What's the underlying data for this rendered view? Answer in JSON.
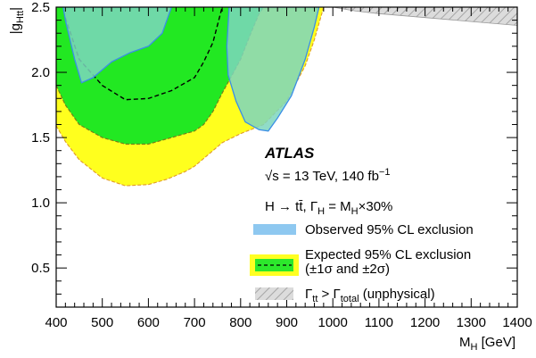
{
  "chart_data": {
    "type": "area",
    "xlabel": "M_H [GeV]",
    "ylabel": "|g_Htt|",
    "xlim": [
      400,
      1400
    ],
    "ylim": [
      0.2,
      2.5
    ],
    "x_ticks": [
      400,
      500,
      600,
      700,
      800,
      900,
      1000,
      1100,
      1200,
      1300,
      1400
    ],
    "y_ticks": [
      0.5,
      1.0,
      1.5,
      2.0,
      2.5
    ],
    "x_tick_labels": [
      "400",
      "500",
      "600",
      "700",
      "800",
      "900",
      "1000",
      "1100",
      "1200",
      "1300",
      "1400"
    ],
    "y_tick_labels": [
      "0.5",
      "1.0",
      "1.5",
      "2.0",
      "2.5"
    ],
    "annotations": {
      "experiment": "ATLAS",
      "energy_lumi": "√s = 13 TeV, 140 fb⁻¹",
      "process": "H → tt̄, Γ_H = M_H×30%"
    },
    "legend": {
      "placement": "bottom-right",
      "entries": [
        {
          "label": "Observed 95% CL exclusion",
          "color": "#8ec8f0"
        },
        {
          "label": "Expected 95% CL exclusion",
          "label2": "(±1σ and ±2σ)",
          "color": "#2ce82c",
          "band_color": "#ffff22"
        },
        {
          "label": "Γtt > Γtotal (unphysical)",
          "color": "#d6d6d6"
        }
      ]
    },
    "colors": {
      "yellow": "#ffff1e",
      "green": "#22e822",
      "observed_fill": "#7cd6be",
      "observed_edge": "#3a8ee6",
      "unphysical": "#d9d9d9"
    },
    "series": [
      {
        "name": "Expected ±2σ",
        "kind": "band",
        "points": [
          [
            400,
            1.59
          ],
          [
            420,
            1.47
          ],
          [
            450,
            1.33
          ],
          [
            500,
            1.19
          ],
          [
            550,
            1.13
          ],
          [
            600,
            1.14
          ],
          [
            640,
            1.18
          ],
          [
            680,
            1.24
          ],
          [
            700,
            1.28
          ],
          [
            720,
            1.34
          ],
          [
            740,
            1.4
          ],
          [
            760,
            1.46
          ],
          [
            800,
            1.53
          ],
          [
            850,
            1.6
          ],
          [
            900,
            1.78
          ],
          [
            940,
            2.05
          ],
          [
            960,
            2.25
          ],
          [
            980,
            2.5
          ],
          [
            400,
            2.5
          ]
        ]
      },
      {
        "name": "Expected ±1σ",
        "kind": "band",
        "points": [
          [
            400,
            1.9
          ],
          [
            420,
            1.75
          ],
          [
            450,
            1.6
          ],
          [
            500,
            1.5
          ],
          [
            550,
            1.45
          ],
          [
            600,
            1.45
          ],
          [
            650,
            1.5
          ],
          [
            700,
            1.55
          ],
          [
            720,
            1.6
          ],
          [
            740,
            1.7
          ],
          [
            760,
            1.84
          ],
          [
            780,
            1.97
          ],
          [
            800,
            2.1
          ],
          [
            820,
            2.28
          ],
          [
            840,
            2.45
          ],
          [
            850,
            2.5
          ],
          [
            400,
            2.5
          ]
        ]
      },
      {
        "name": "Expected",
        "kind": "line",
        "points": [
          [
            420,
            2.42
          ],
          [
            450,
            2.1
          ],
          [
            500,
            1.9
          ],
          [
            550,
            1.79
          ],
          [
            600,
            1.8
          ],
          [
            650,
            1.86
          ],
          [
            700,
            1.96
          ],
          [
            720,
            2.08
          ],
          [
            740,
            2.23
          ],
          [
            760,
            2.5
          ]
        ]
      },
      {
        "name": "Observed",
        "kind": "region",
        "points": [
          [
            415,
            2.5
          ],
          [
            420,
            2.4
          ],
          [
            440,
            2.1
          ],
          [
            455,
            1.92
          ],
          [
            480,
            1.96
          ],
          [
            520,
            2.08
          ],
          [
            560,
            2.15
          ],
          [
            600,
            2.2
          ],
          [
            630,
            2.3
          ],
          [
            650,
            2.5
          ]
        ]
      },
      {
        "name": "Observed",
        "kind": "region",
        "points": [
          [
            775,
            2.5
          ],
          [
            770,
            2.2
          ],
          [
            773,
            1.98
          ],
          [
            790,
            1.78
          ],
          [
            810,
            1.62
          ],
          [
            840,
            1.56
          ],
          [
            860,
            1.55
          ],
          [
            880,
            1.65
          ],
          [
            910,
            1.82
          ],
          [
            940,
            2.1
          ],
          [
            960,
            2.35
          ],
          [
            970,
            2.5
          ]
        ]
      },
      {
        "name": "Unphysical",
        "kind": "region",
        "points": [
          [
            1000,
            2.5
          ],
          [
            1050,
            2.47
          ],
          [
            1100,
            2.45
          ],
          [
            1200,
            2.42
          ],
          [
            1300,
            2.39
          ],
          [
            1400,
            2.36
          ],
          [
            1400,
            2.5
          ]
        ]
      }
    ]
  }
}
